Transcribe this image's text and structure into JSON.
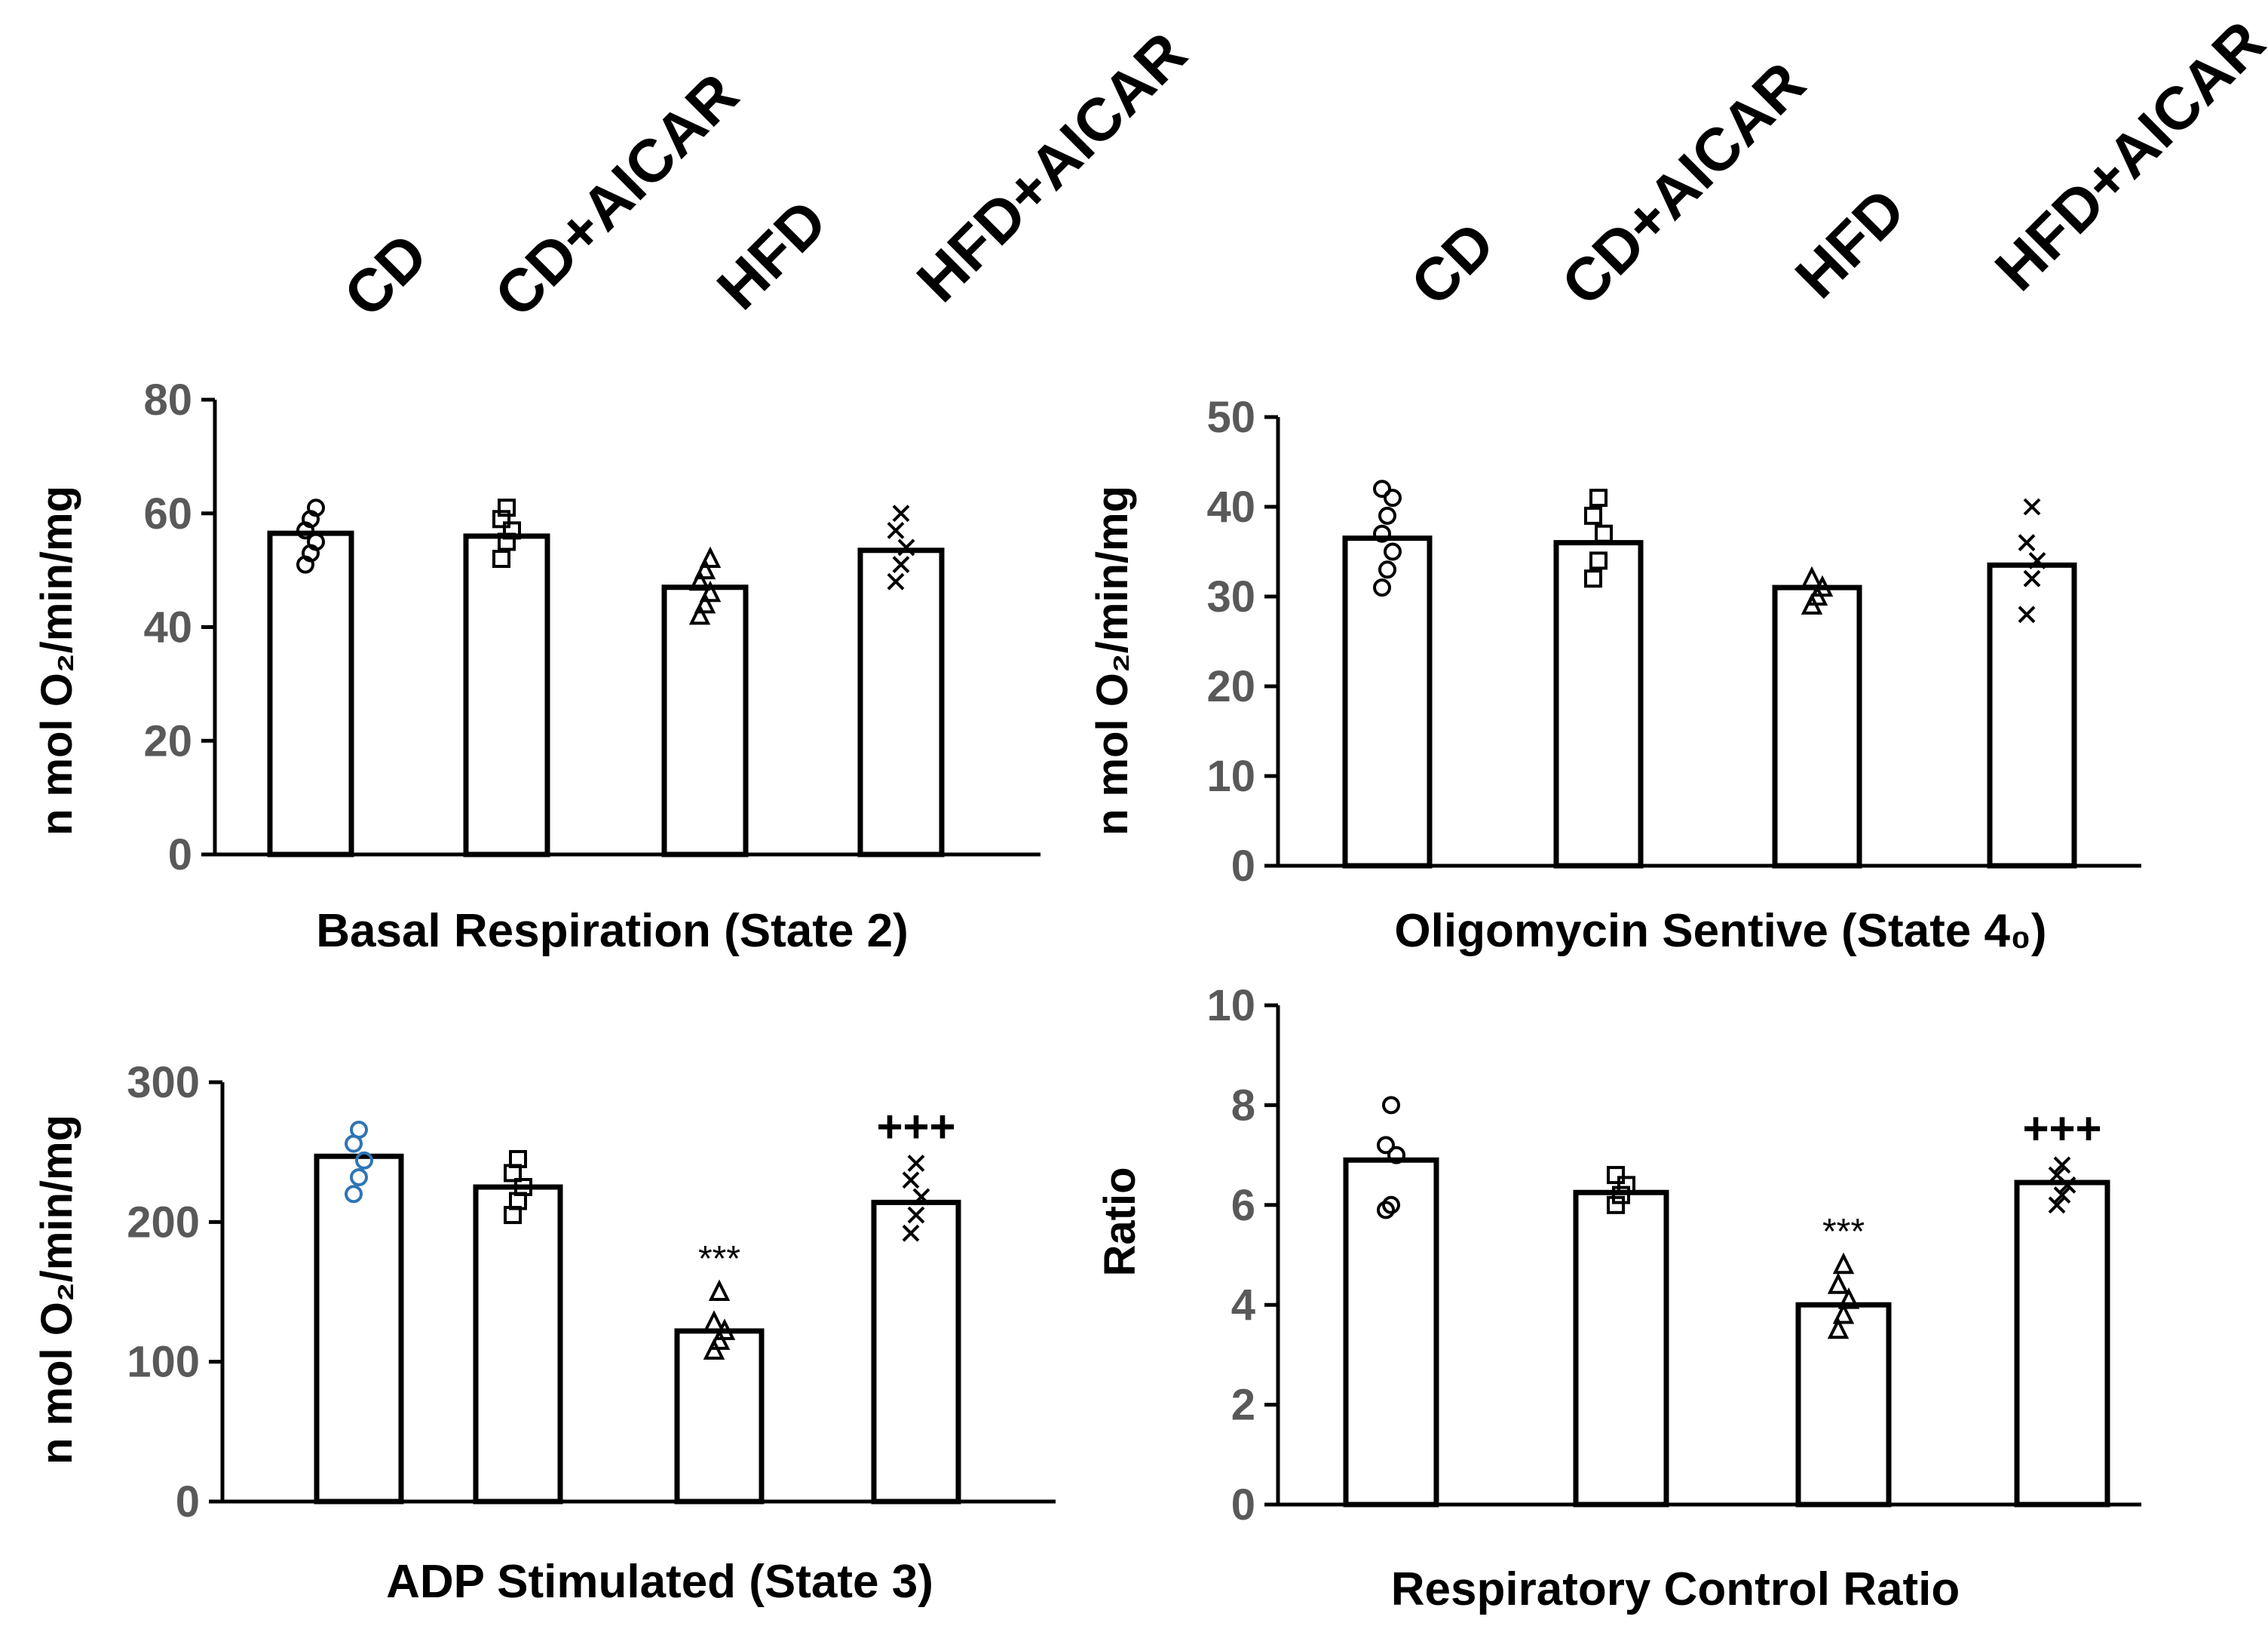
{
  "figure": {
    "group_labels": [
      "CD",
      "CD+AICAR",
      "HFD",
      "HFD+AICAR"
    ]
  },
  "chart_data": [
    {
      "type": "bar",
      "title": "Basal Respiration (State 2)",
      "ylabel": "n mol O₂/min/mg",
      "xlabel": "",
      "categories": [
        "CD",
        "CD+AICAR",
        "HFD",
        "HFD+AICAR"
      ],
      "values": [
        56.5,
        56,
        47,
        53.5
      ],
      "ylim": [
        0,
        80
      ],
      "yticks": [
        "0",
        "20",
        "40",
        "60",
        "80"
      ],
      "points": [
        [
          51,
          53,
          55,
          57,
          59,
          61
        ],
        [
          52,
          55,
          57,
          59,
          61
        ],
        [
          42,
          44,
          46,
          48,
          50,
          52
        ],
        [
          48,
          51,
          54,
          57,
          60
        ]
      ],
      "markers": [
        "circle",
        "square",
        "triangle",
        "x"
      ],
      "marker_colors": [
        "#000000",
        "#000000",
        "#000000",
        "#000000"
      ],
      "annotations": [
        "",
        "",
        "",
        ""
      ]
    },
    {
      "type": "bar",
      "title": "Oligomycin Sentive (State 4₀)",
      "ylabel": "n mol O₂/min/mg",
      "xlabel": "",
      "categories": [
        "CD",
        "CD+AICAR",
        "HFD",
        "HFD+AICAR"
      ],
      "values": [
        36.5,
        36,
        31,
        33.5
      ],
      "ylim": [
        0,
        50
      ],
      "yticks": [
        "0",
        "10",
        "20",
        "30",
        "40",
        "50"
      ],
      "points": [
        [
          31,
          33,
          35,
          37,
          39,
          41,
          42
        ],
        [
          32,
          34,
          37,
          39,
          41
        ],
        [
          29,
          30,
          31,
          32
        ],
        [
          28,
          32,
          34,
          36,
          40
        ]
      ],
      "markers": [
        "circle",
        "square",
        "triangle",
        "x"
      ],
      "marker_colors": [
        "#000000",
        "#000000",
        "#000000",
        "#000000"
      ],
      "annotations": [
        "",
        "",
        "",
        ""
      ]
    },
    {
      "type": "bar",
      "title": "ADP Stimulated (State 3)",
      "ylabel": "n mol O₂/min/mg",
      "xlabel": "",
      "categories": [
        "CD",
        "CD+AICAR",
        "HFD",
        "HFD+AICAR"
      ],
      "values": [
        247,
        225,
        122,
        214
      ],
      "ylim": [
        0,
        300
      ],
      "yticks": [
        "0",
        "100",
        "200",
        "300"
      ],
      "points": [
        [
          220,
          232,
          244,
          256,
          266
        ],
        [
          205,
          215,
          225,
          235,
          245
        ],
        [
          108,
          115,
          122,
          128,
          150
        ],
        [
          192,
          205,
          218,
          230,
          242
        ]
      ],
      "markers": [
        "circle",
        "square",
        "triangle",
        "x"
      ],
      "marker_colors": [
        "#2e75b6",
        "#000000",
        "#000000",
        "#000000"
      ],
      "annotations": [
        "",
        "",
        "***",
        "+++"
      ]
    },
    {
      "type": "bar",
      "title": "Respiratory Control Ratio",
      "ylabel": "Ratio",
      "xlabel": "",
      "categories": [
        "CD",
        "CD+AICAR",
        "HFD",
        "HFD+AICAR"
      ],
      "values": [
        6.9,
        6.25,
        4,
        6.45
      ],
      "ylim": [
        0,
        10
      ],
      "yticks": [
        "0",
        "2",
        "4",
        "6",
        "8",
        "10"
      ],
      "points": [
        [
          5.9,
          6.0,
          7.0,
          7.2,
          8.0
        ],
        [
          6.0,
          6.2,
          6.4,
          6.6
        ],
        [
          3.5,
          3.8,
          4.1,
          4.4,
          4.8
        ],
        [
          6.0,
          6.2,
          6.4,
          6.6,
          6.8
        ]
      ],
      "markers": [
        "circle",
        "square",
        "triangle",
        "x"
      ],
      "marker_colors": [
        "#000000",
        "#000000",
        "#000000",
        "#000000"
      ],
      "annotations": [
        "",
        "",
        "***",
        "+++"
      ]
    }
  ]
}
